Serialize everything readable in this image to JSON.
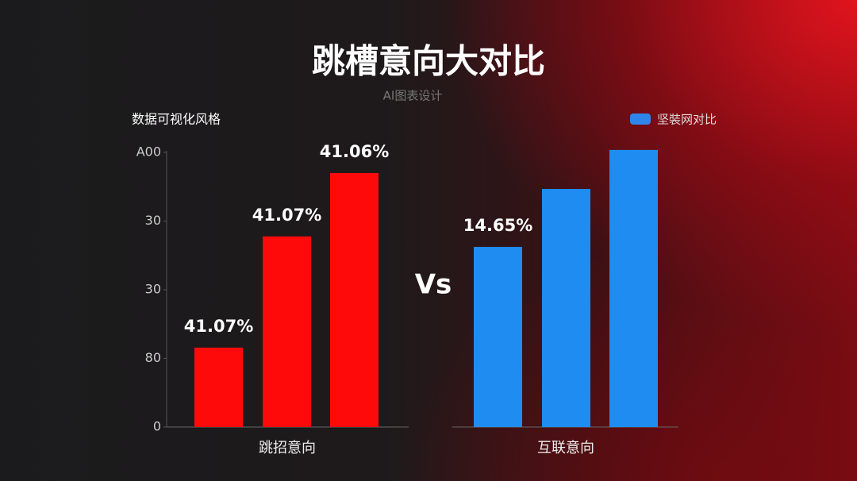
{
  "chart_data": {
    "type": "bar",
    "title": "跳槽意向大对比",
    "subtitle": "AI图表设计",
    "y_label": "数据可视化风格",
    "center_text": "Vs",
    "legend_label": "坚裝网对比",
    "legend_color": "#2f86ea",
    "groups": [
      {
        "name": "跳招意向",
        "color": "#ff0a0a",
        "values": [
          28.9,
          69.4,
          92.5
        ]
      },
      {
        "name": "互联意向",
        "color": "#1e8cf0",
        "values": [
          65.6,
          86.7,
          100.9
        ]
      }
    ],
    "annotations": [
      "41.07%",
      "41.07%",
      "41.06%",
      "14.65%"
    ],
    "ylim": [
      0,
      100
    ],
    "yticks": [
      0,
      {
        "value": 25,
        "label": "80"
      },
      {
        "value": 50,
        "label": "30"
      },
      {
        "value": 75,
        "label": "30"
      },
      {
        "value": 100,
        "label": "A00"
      }
    ]
  }
}
